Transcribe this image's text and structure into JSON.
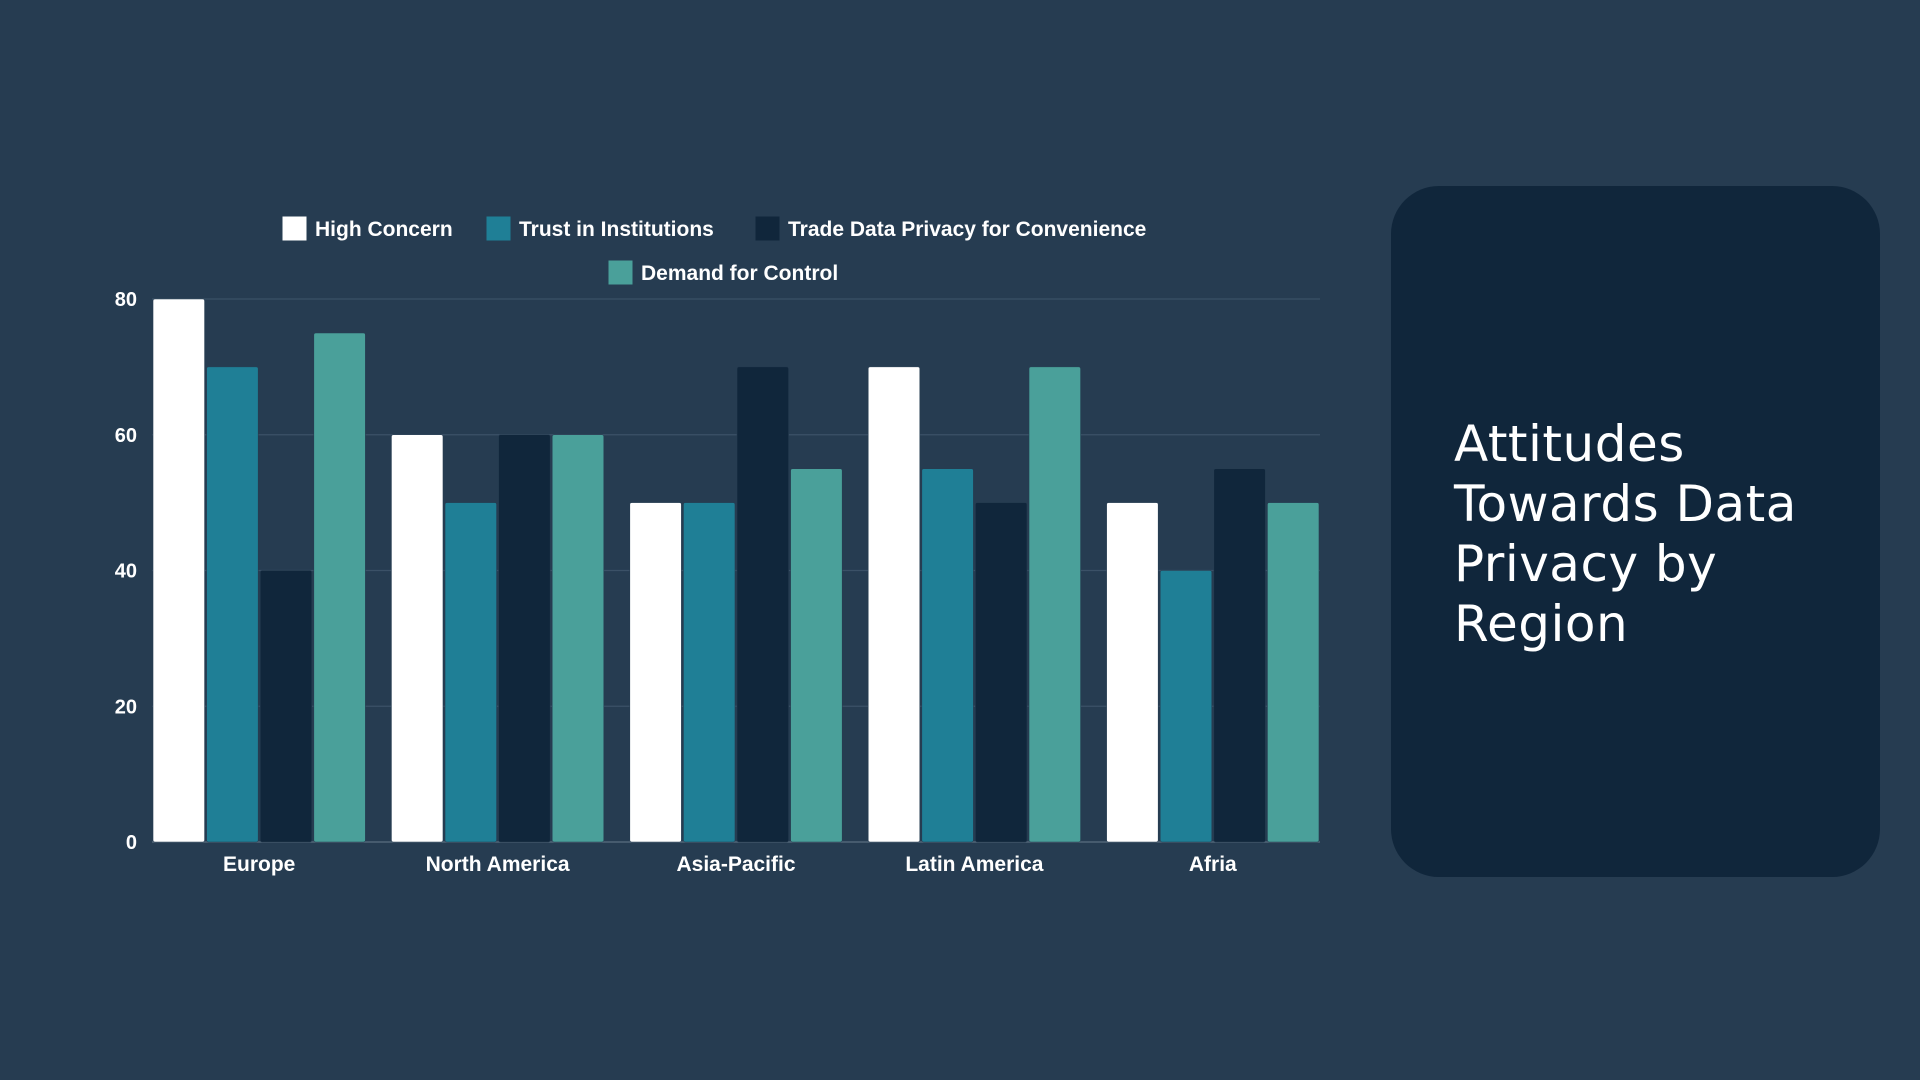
{
  "colors": {
    "background": "#263c51",
    "card": "#10263b",
    "grid": "#3b5167"
  },
  "card": {
    "title": "Attitudes Towards Data Privacy by Region"
  },
  "chart_data": {
    "type": "bar",
    "title": "",
    "xlabel": "",
    "ylabel": "",
    "categories": [
      "Europe",
      "North America",
      "Asia-Pacific",
      "Latin America",
      "Afria"
    ],
    "series": [
      {
        "name": "High Concern",
        "color": "#ffffff",
        "values": [
          80,
          60,
          50,
          70,
          50
        ]
      },
      {
        "name": "Trust in Institutions",
        "color": "#1f7f96",
        "values": [
          70,
          50,
          50,
          55,
          40
        ]
      },
      {
        "name": "Trade Data Privacy for Convenience",
        "color": "#10263b",
        "values": [
          40,
          60,
          70,
          50,
          55
        ]
      },
      {
        "name": "Demand for Control",
        "color": "#4aa09a",
        "values": [
          75,
          60,
          55,
          70,
          50
        ]
      }
    ],
    "ylim": [
      0,
      80
    ],
    "yticks": [
      0,
      20,
      40,
      60,
      80
    ],
    "grid": true,
    "legend": "top"
  }
}
